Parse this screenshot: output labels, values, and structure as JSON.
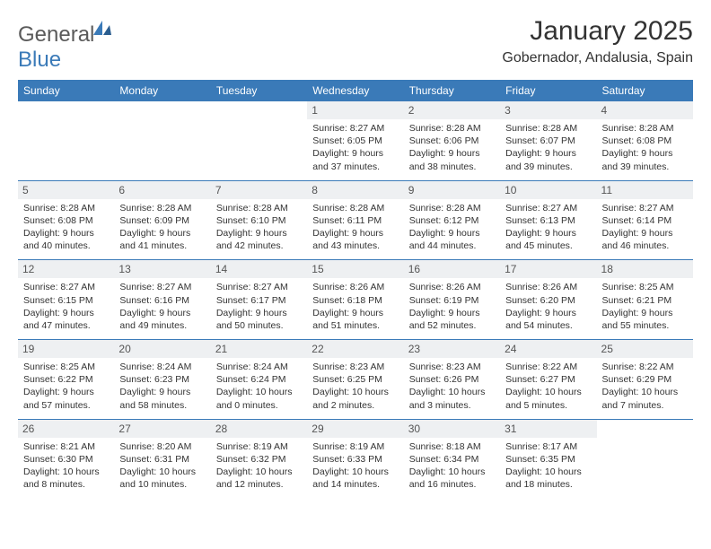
{
  "brand": {
    "name_part1": "General",
    "name_part2": "Blue"
  },
  "title": "January 2025",
  "location": "Gobernador, Andalusia, Spain",
  "colors": {
    "header_bg": "#3a7ab8",
    "header_text": "#ffffff",
    "daynum_bg": "#eef0f2",
    "row_divider": "#3a7ab8",
    "body_text": "#333333",
    "logo_gray": "#5a5a5a",
    "logo_blue": "#3a7ab8"
  },
  "weekdays": [
    "Sunday",
    "Monday",
    "Tuesday",
    "Wednesday",
    "Thursday",
    "Friday",
    "Saturday"
  ],
  "weeks": [
    [
      {
        "day": "",
        "sunrise": "",
        "sunset": "",
        "daylight": ""
      },
      {
        "day": "",
        "sunrise": "",
        "sunset": "",
        "daylight": ""
      },
      {
        "day": "",
        "sunrise": "",
        "sunset": "",
        "daylight": ""
      },
      {
        "day": "1",
        "sunrise": "Sunrise: 8:27 AM",
        "sunset": "Sunset: 6:05 PM",
        "daylight": "Daylight: 9 hours and 37 minutes."
      },
      {
        "day": "2",
        "sunrise": "Sunrise: 8:28 AM",
        "sunset": "Sunset: 6:06 PM",
        "daylight": "Daylight: 9 hours and 38 minutes."
      },
      {
        "day": "3",
        "sunrise": "Sunrise: 8:28 AM",
        "sunset": "Sunset: 6:07 PM",
        "daylight": "Daylight: 9 hours and 39 minutes."
      },
      {
        "day": "4",
        "sunrise": "Sunrise: 8:28 AM",
        "sunset": "Sunset: 6:08 PM",
        "daylight": "Daylight: 9 hours and 39 minutes."
      }
    ],
    [
      {
        "day": "5",
        "sunrise": "Sunrise: 8:28 AM",
        "sunset": "Sunset: 6:08 PM",
        "daylight": "Daylight: 9 hours and 40 minutes."
      },
      {
        "day": "6",
        "sunrise": "Sunrise: 8:28 AM",
        "sunset": "Sunset: 6:09 PM",
        "daylight": "Daylight: 9 hours and 41 minutes."
      },
      {
        "day": "7",
        "sunrise": "Sunrise: 8:28 AM",
        "sunset": "Sunset: 6:10 PM",
        "daylight": "Daylight: 9 hours and 42 minutes."
      },
      {
        "day": "8",
        "sunrise": "Sunrise: 8:28 AM",
        "sunset": "Sunset: 6:11 PM",
        "daylight": "Daylight: 9 hours and 43 minutes."
      },
      {
        "day": "9",
        "sunrise": "Sunrise: 8:28 AM",
        "sunset": "Sunset: 6:12 PM",
        "daylight": "Daylight: 9 hours and 44 minutes."
      },
      {
        "day": "10",
        "sunrise": "Sunrise: 8:27 AM",
        "sunset": "Sunset: 6:13 PM",
        "daylight": "Daylight: 9 hours and 45 minutes."
      },
      {
        "day": "11",
        "sunrise": "Sunrise: 8:27 AM",
        "sunset": "Sunset: 6:14 PM",
        "daylight": "Daylight: 9 hours and 46 minutes."
      }
    ],
    [
      {
        "day": "12",
        "sunrise": "Sunrise: 8:27 AM",
        "sunset": "Sunset: 6:15 PM",
        "daylight": "Daylight: 9 hours and 47 minutes."
      },
      {
        "day": "13",
        "sunrise": "Sunrise: 8:27 AM",
        "sunset": "Sunset: 6:16 PM",
        "daylight": "Daylight: 9 hours and 49 minutes."
      },
      {
        "day": "14",
        "sunrise": "Sunrise: 8:27 AM",
        "sunset": "Sunset: 6:17 PM",
        "daylight": "Daylight: 9 hours and 50 minutes."
      },
      {
        "day": "15",
        "sunrise": "Sunrise: 8:26 AM",
        "sunset": "Sunset: 6:18 PM",
        "daylight": "Daylight: 9 hours and 51 minutes."
      },
      {
        "day": "16",
        "sunrise": "Sunrise: 8:26 AM",
        "sunset": "Sunset: 6:19 PM",
        "daylight": "Daylight: 9 hours and 52 minutes."
      },
      {
        "day": "17",
        "sunrise": "Sunrise: 8:26 AM",
        "sunset": "Sunset: 6:20 PM",
        "daylight": "Daylight: 9 hours and 54 minutes."
      },
      {
        "day": "18",
        "sunrise": "Sunrise: 8:25 AM",
        "sunset": "Sunset: 6:21 PM",
        "daylight": "Daylight: 9 hours and 55 minutes."
      }
    ],
    [
      {
        "day": "19",
        "sunrise": "Sunrise: 8:25 AM",
        "sunset": "Sunset: 6:22 PM",
        "daylight": "Daylight: 9 hours and 57 minutes."
      },
      {
        "day": "20",
        "sunrise": "Sunrise: 8:24 AM",
        "sunset": "Sunset: 6:23 PM",
        "daylight": "Daylight: 9 hours and 58 minutes."
      },
      {
        "day": "21",
        "sunrise": "Sunrise: 8:24 AM",
        "sunset": "Sunset: 6:24 PM",
        "daylight": "Daylight: 10 hours and 0 minutes."
      },
      {
        "day": "22",
        "sunrise": "Sunrise: 8:23 AM",
        "sunset": "Sunset: 6:25 PM",
        "daylight": "Daylight: 10 hours and 2 minutes."
      },
      {
        "day": "23",
        "sunrise": "Sunrise: 8:23 AM",
        "sunset": "Sunset: 6:26 PM",
        "daylight": "Daylight: 10 hours and 3 minutes."
      },
      {
        "day": "24",
        "sunrise": "Sunrise: 8:22 AM",
        "sunset": "Sunset: 6:27 PM",
        "daylight": "Daylight: 10 hours and 5 minutes."
      },
      {
        "day": "25",
        "sunrise": "Sunrise: 8:22 AM",
        "sunset": "Sunset: 6:29 PM",
        "daylight": "Daylight: 10 hours and 7 minutes."
      }
    ],
    [
      {
        "day": "26",
        "sunrise": "Sunrise: 8:21 AM",
        "sunset": "Sunset: 6:30 PM",
        "daylight": "Daylight: 10 hours and 8 minutes."
      },
      {
        "day": "27",
        "sunrise": "Sunrise: 8:20 AM",
        "sunset": "Sunset: 6:31 PM",
        "daylight": "Daylight: 10 hours and 10 minutes."
      },
      {
        "day": "28",
        "sunrise": "Sunrise: 8:19 AM",
        "sunset": "Sunset: 6:32 PM",
        "daylight": "Daylight: 10 hours and 12 minutes."
      },
      {
        "day": "29",
        "sunrise": "Sunrise: 8:19 AM",
        "sunset": "Sunset: 6:33 PM",
        "daylight": "Daylight: 10 hours and 14 minutes."
      },
      {
        "day": "30",
        "sunrise": "Sunrise: 8:18 AM",
        "sunset": "Sunset: 6:34 PM",
        "daylight": "Daylight: 10 hours and 16 minutes."
      },
      {
        "day": "31",
        "sunrise": "Sunrise: 8:17 AM",
        "sunset": "Sunset: 6:35 PM",
        "daylight": "Daylight: 10 hours and 18 minutes."
      },
      {
        "day": "",
        "sunrise": "",
        "sunset": "",
        "daylight": ""
      }
    ]
  ]
}
